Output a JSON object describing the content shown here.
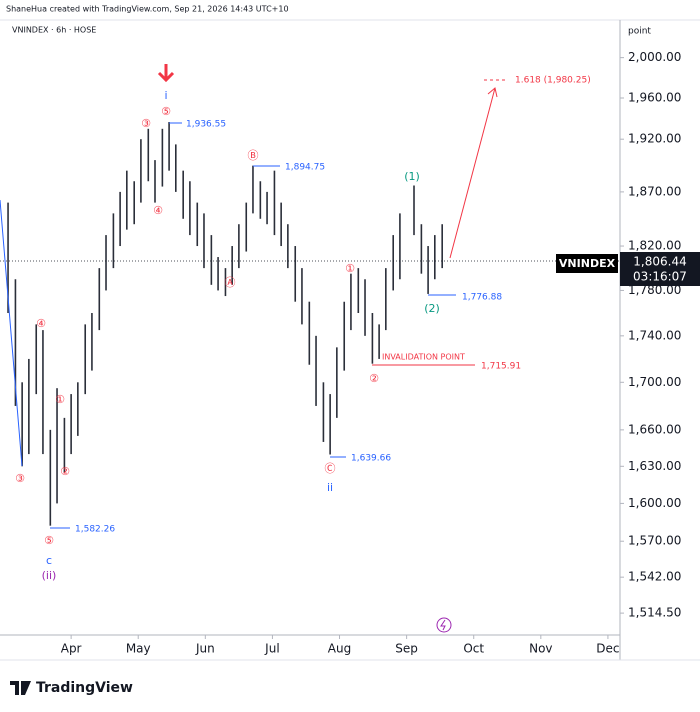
{
  "header": "ShaneHua created with TradingView.com, Sep 21, 2026 14:43 UTC+10",
  "footer": "TradingView",
  "chart_data": {
    "type": "ohlc",
    "title": "VNINDEX · 6h · HOSE",
    "y_unit": "point",
    "log": true,
    "ylim": [
      1498,
      2036
    ],
    "yticks": [
      {
        "value": 2000,
        "label": "2,000.00"
      },
      {
        "value": 1960,
        "label": "1,960.00"
      },
      {
        "value": 1920,
        "label": "1,920.00"
      },
      {
        "value": 1870,
        "label": "1,870.00"
      },
      {
        "value": 1820,
        "label": "1,820.00"
      },
      {
        "value": 1780,
        "label": "1,780.00"
      },
      {
        "value": 1740,
        "label": "1,740.00"
      },
      {
        "value": 1700,
        "label": "1,700.00"
      },
      {
        "value": 1660,
        "label": "1,660.00"
      },
      {
        "value": 1630,
        "label": "1,630.00"
      },
      {
        "value": 1600,
        "label": "1,600.00"
      },
      {
        "value": 1570,
        "label": "1,570.00"
      },
      {
        "value": 1542,
        "label": "1,542.00"
      },
      {
        "value": 1514.5,
        "label": "1,514.50"
      }
    ],
    "xlim": [
      2.94,
      12.18
    ],
    "xticks": [
      {
        "value": 4,
        "label": "Apr"
      },
      {
        "value": 5,
        "label": "May"
      },
      {
        "value": 6,
        "label": "Jun"
      },
      {
        "value": 7,
        "label": "Jul"
      },
      {
        "value": 8,
        "label": "Aug"
      },
      {
        "value": 9,
        "label": "Sep"
      },
      {
        "value": 10,
        "label": "Oct"
      },
      {
        "value": 11,
        "label": "Nov"
      },
      {
        "value": 12,
        "label": "Dec"
      }
    ],
    "series": [
      {
        "name": "VNINDEX",
        "color": "#2a2e39",
        "x": [
          3.06,
          3.17,
          3.27,
          3.37,
          3.48,
          3.58,
          3.69,
          3.79,
          3.9,
          4.0,
          4.1,
          4.21,
          4.31,
          4.42,
          4.52,
          4.63,
          4.73,
          4.83,
          4.94,
          5.04,
          5.15,
          5.25,
          5.36,
          5.46,
          5.56,
          5.67,
          5.77,
          5.88,
          5.98,
          6.09,
          6.19,
          6.3,
          6.4,
          6.5,
          6.61,
          6.71,
          6.82,
          6.92,
          7.03,
          7.13,
          7.23,
          7.34,
          7.44,
          7.55,
          7.65,
          7.76,
          7.86,
          7.96,
          8.07,
          8.17,
          8.28,
          8.38,
          8.49,
          8.59,
          8.69,
          8.8,
          8.9,
          9.11,
          9.22,
          9.32,
          9.42,
          9.53
        ],
        "high": [
          1860,
          1790,
          1700,
          1720,
          1750,
          1745,
          1660,
          1695,
          1670,
          1690,
          1700,
          1750,
          1760,
          1800,
          1830,
          1850,
          1870,
          1890,
          1880,
          1920,
          1930,
          1900,
          1930,
          1936.55,
          1915,
          1890,
          1880,
          1860,
          1850,
          1830,
          1810,
          1800,
          1820,
          1840,
          1860,
          1894.75,
          1880,
          1870,
          1890,
          1860,
          1840,
          1820,
          1800,
          1770,
          1740,
          1700,
          1690,
          1730,
          1770,
          1795,
          1800,
          1790,
          1760,
          1750,
          1800,
          1830,
          1850,
          1876,
          1840,
          1820,
          1830,
          1840
        ],
        "low": [
          1760,
          1680,
          1630,
          1640,
          1690,
          1640,
          1582.26,
          1600,
          1625,
          1640,
          1655,
          1690,
          1710,
          1745,
          1780,
          1800,
          1820,
          1835,
          1840,
          1860,
          1880,
          1860,
          1875,
          1890,
          1870,
          1845,
          1830,
          1820,
          1800,
          1785,
          1780,
          1775,
          1785,
          1800,
          1815,
          1850,
          1845,
          1840,
          1830,
          1820,
          1800,
          1770,
          1750,
          1715,
          1680,
          1650,
          1639.66,
          1670,
          1710,
          1745,
          1760,
          1740,
          1715.91,
          1720,
          1745,
          1780,
          1790,
          1830,
          1795,
          1776.88,
          1790,
          1800
        ]
      }
    ],
    "last_price": {
      "value": 1806.44,
      "label": "1,806.44"
    },
    "countdown": "03:16:07",
    "annotations": [
      "③",
      "④",
      "⑤",
      "c",
      "(ii)",
      "①",
      "②",
      "③",
      "④",
      "⑤",
      "i",
      "Ⓐ",
      "Ⓑ",
      "Ⓒ",
      "ii",
      "①",
      "②",
      "(1)",
      "(2)",
      "1,582.26",
      "1,936.55",
      "1,894.75",
      "1,639.66",
      "1,776.88",
      "INVALIDATION POINT",
      "1,715.91",
      "1.618 (1,980.25)"
    ]
  }
}
